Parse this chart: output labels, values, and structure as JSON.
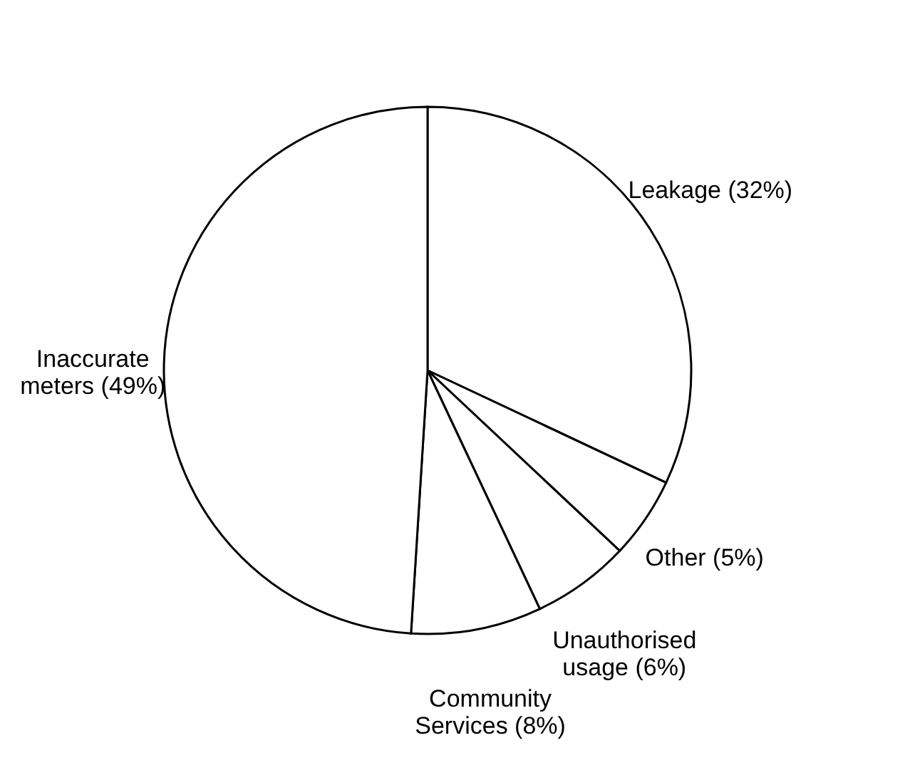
{
  "chart_data": {
    "type": "pie",
    "categories": [
      "Leakage (32%)",
      "Other (5%)",
      "Unauthorised usage (6%)",
      "Community Services (8%)",
      "Inaccurate meters (49%)"
    ],
    "values": [
      32,
      5,
      6,
      8,
      49
    ],
    "colors": [
      "#ffffff",
      "#ffffff",
      "#ffffff",
      "#ffffff",
      "#ffffff"
    ],
    "legend": false
  }
}
